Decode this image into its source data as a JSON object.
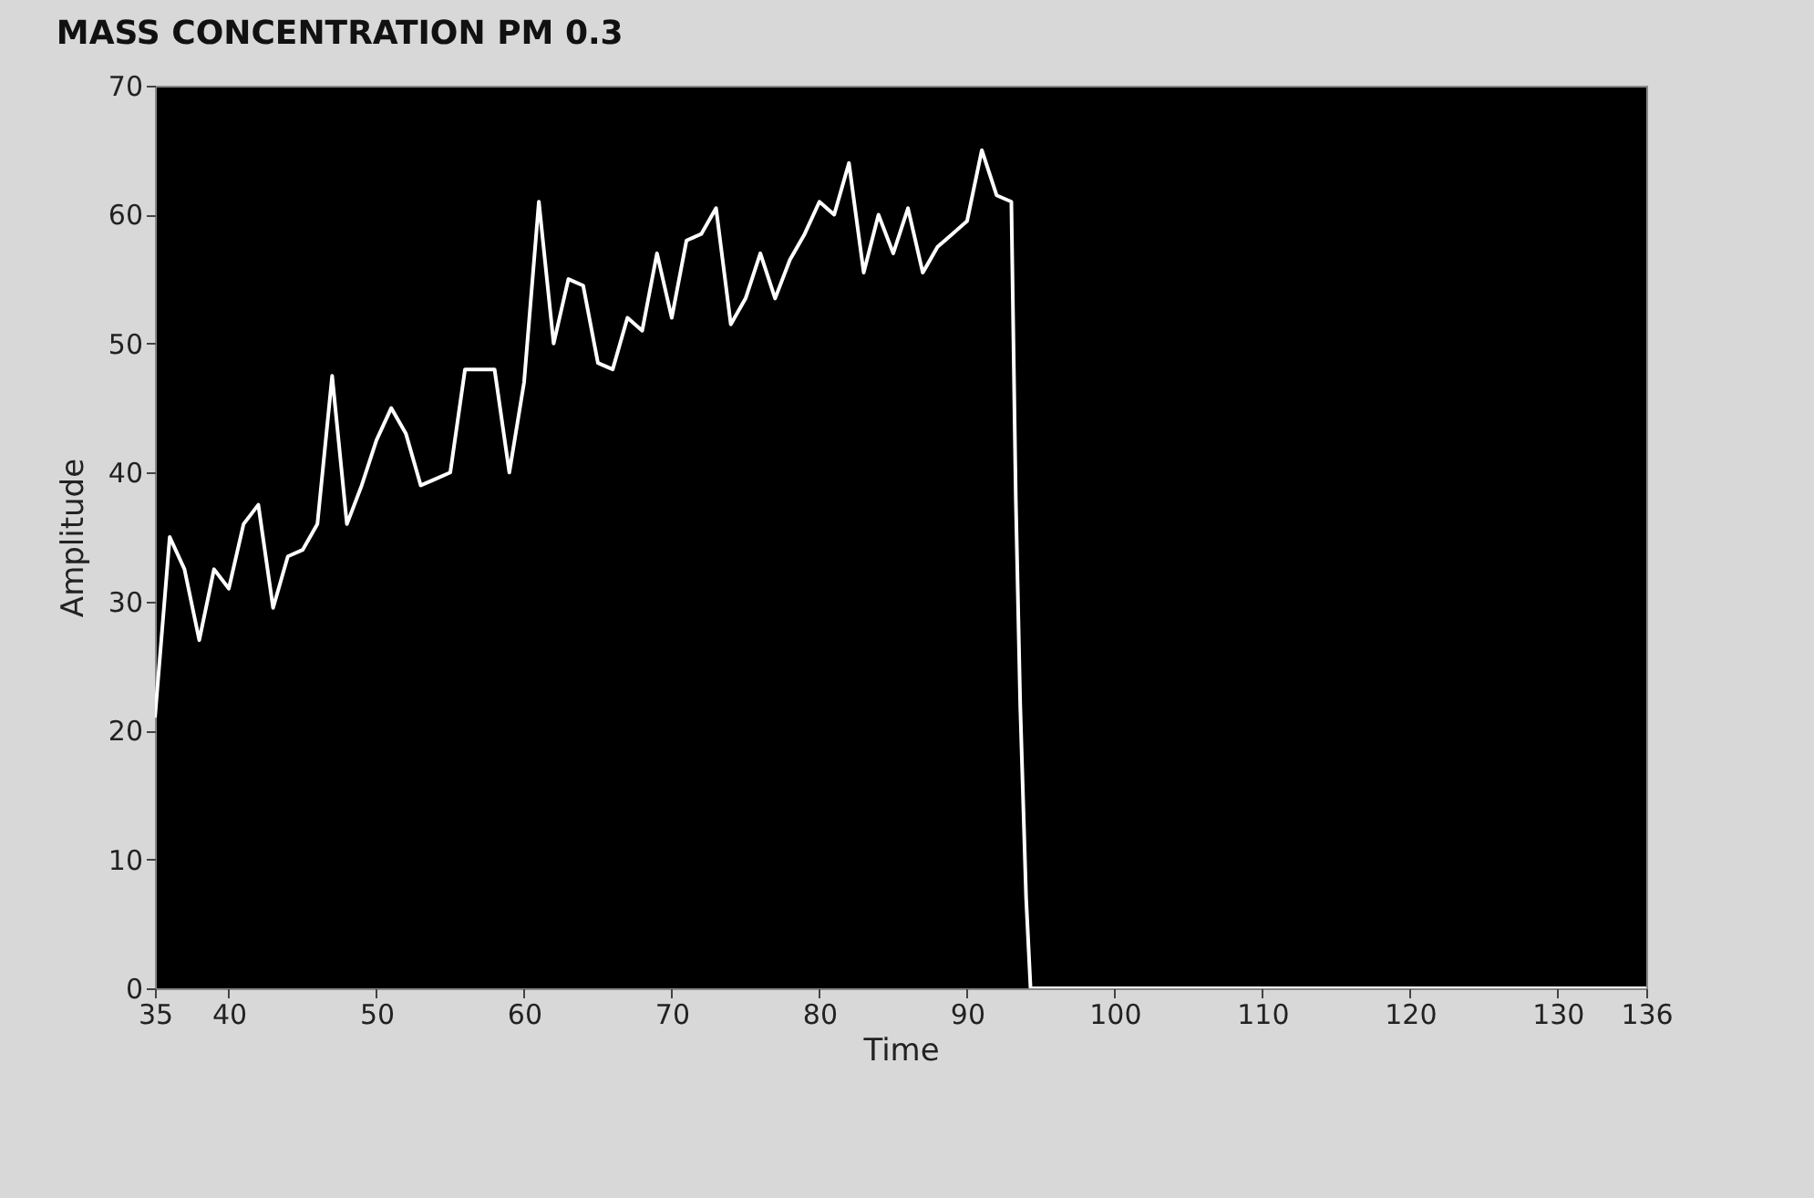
{
  "chart_data": {
    "type": "line",
    "title": "MASS CONCENTRATION PM 0.3",
    "xlabel": "Time",
    "ylabel": "Amplitude",
    "x": [
      35,
      36,
      37,
      38,
      39,
      40,
      41,
      42,
      43,
      44,
      45,
      46,
      47,
      48,
      49,
      50,
      51,
      52,
      53,
      54,
      55,
      56,
      57,
      58,
      59,
      60,
      61,
      62,
      63,
      64,
      65,
      66,
      67,
      68,
      69,
      70,
      71,
      72,
      73,
      74,
      75,
      76,
      77,
      78,
      79,
      80,
      81,
      82,
      83,
      84,
      85,
      86,
      87,
      88,
      89,
      90,
      91,
      92,
      93,
      93.3,
      93.6,
      94,
      94.3,
      136
    ],
    "series": [
      {
        "color": "#ffffff",
        "values": [
          21,
          35,
          32.5,
          27,
          32.5,
          31,
          36,
          37.5,
          29.5,
          33.5,
          34,
          36,
          47.5,
          36,
          39,
          42.5,
          45,
          43,
          39,
          39.5,
          40,
          48,
          48,
          48,
          40,
          47,
          61,
          50,
          55,
          54.5,
          48.5,
          48,
          52,
          51,
          57,
          52,
          58,
          58.5,
          60.5,
          51.5,
          53.5,
          57,
          53.5,
          56.5,
          58.5,
          61,
          60,
          64,
          55.5,
          60,
          57,
          60.5,
          55.5,
          57.5,
          58.5,
          59.5,
          65,
          61.5,
          61,
          38,
          22,
          7,
          0,
          0
        ]
      }
    ],
    "xlim": [
      35,
      136
    ],
    "xticks": [
      35,
      40,
      50,
      60,
      70,
      80,
      90,
      100,
      110,
      120,
      130,
      136
    ],
    "ylim": [
      0,
      70
    ],
    "yticks": [
      0,
      10,
      20,
      30,
      40,
      50,
      60,
      70
    ],
    "grid": false,
    "legend": false,
    "marker": "none",
    "line_style": "solid"
  }
}
